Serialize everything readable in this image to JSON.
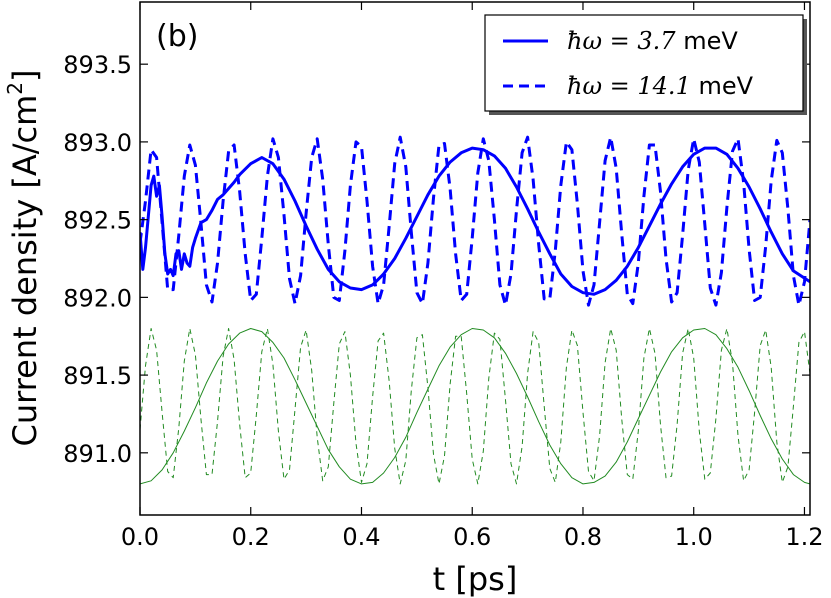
{
  "chart_data": {
    "type": "line",
    "panel_label": "(b)",
    "xlabel": "t [ps]",
    "ylabel": "Current density [A/cm",
    "ylabel_sup": "2",
    "ylabel_close": "]",
    "xlim": [
      0.0,
      1.21
    ],
    "ylim": [
      890.6,
      893.9
    ],
    "x_ticks": [
      0.0,
      0.2,
      0.4,
      0.6,
      0.8,
      1.0,
      1.2
    ],
    "x_tick_labels": [
      "0.0",
      "0.2",
      "0.4",
      "0.6",
      "0.8",
      "1.0",
      "1.2"
    ],
    "y_ticks": [
      891.0,
      891.5,
      892.0,
      892.5,
      893.0,
      893.5
    ],
    "y_tick_labels": [
      "891.0",
      "891.5",
      "892.0",
      "892.5",
      "893.0",
      "893.5"
    ],
    "grid": false,
    "legend_position": "top-right",
    "series": [
      {
        "name": "hw_3_7",
        "legend_math": "ħω = 3.7",
        "legend_unit": " meV",
        "color": "#0000ff",
        "style": "solid",
        "x": [
          0.0,
          0.005,
          0.01,
          0.015,
          0.02,
          0.025,
          0.03,
          0.035,
          0.04,
          0.045,
          0.05,
          0.055,
          0.06,
          0.065,
          0.07,
          0.075,
          0.08,
          0.085,
          0.09,
          0.095,
          0.1,
          0.11,
          0.12,
          0.13,
          0.14,
          0.15,
          0.16,
          0.17,
          0.18,
          0.2,
          0.22,
          0.24,
          0.26,
          0.28,
          0.3,
          0.32,
          0.34,
          0.36,
          0.38,
          0.4,
          0.42,
          0.44,
          0.46,
          0.48,
          0.5,
          0.52,
          0.54,
          0.56,
          0.58,
          0.6,
          0.62,
          0.64,
          0.66,
          0.68,
          0.7,
          0.72,
          0.74,
          0.76,
          0.78,
          0.8,
          0.82,
          0.84,
          0.86,
          0.88,
          0.9,
          0.92,
          0.94,
          0.96,
          0.98,
          1.0,
          1.02,
          1.04,
          1.06,
          1.08,
          1.1,
          1.12,
          1.14,
          1.16,
          1.18,
          1.21
        ],
        "y": [
          892.42,
          892.18,
          892.32,
          892.52,
          892.72,
          892.78,
          892.65,
          892.72,
          892.52,
          892.28,
          892.15,
          892.18,
          892.14,
          892.28,
          892.3,
          892.18,
          892.28,
          892.22,
          892.2,
          892.32,
          892.38,
          892.48,
          892.5,
          892.56,
          892.63,
          892.66,
          892.7,
          892.74,
          892.79,
          892.86,
          892.9,
          892.86,
          892.76,
          892.62,
          892.46,
          892.31,
          892.18,
          892.1,
          892.06,
          892.05,
          892.08,
          892.15,
          892.25,
          892.38,
          892.52,
          892.66,
          892.78,
          892.87,
          892.93,
          892.96,
          892.95,
          892.91,
          892.83,
          892.71,
          892.57,
          892.42,
          892.28,
          892.15,
          892.07,
          892.03,
          892.02,
          892.05,
          892.11,
          892.2,
          892.32,
          892.46,
          892.6,
          892.73,
          892.84,
          892.92,
          892.96,
          892.96,
          892.92,
          892.83,
          892.71,
          892.57,
          892.42,
          892.28,
          892.17,
          892.1
        ]
      },
      {
        "name": "hw_14_1",
        "legend_math": "ħω = 14.1",
        "legend_unit": " meV",
        "color": "#0000ff",
        "style": "dashed",
        "x": [
          0.0,
          0.01,
          0.02,
          0.03,
          0.04,
          0.05,
          0.06,
          0.07,
          0.08,
          0.09,
          0.1,
          0.11,
          0.12,
          0.13,
          0.14,
          0.15,
          0.16,
          0.17,
          0.18,
          0.19,
          0.2,
          0.21,
          0.22,
          0.23,
          0.24,
          0.25,
          0.26,
          0.27,
          0.28,
          0.29,
          0.3,
          0.31,
          0.32,
          0.33,
          0.34,
          0.35,
          0.36,
          0.37,
          0.38,
          0.39,
          0.4,
          0.41,
          0.42,
          0.43,
          0.44,
          0.45,
          0.46,
          0.47,
          0.48,
          0.49,
          0.5,
          0.51,
          0.52,
          0.53,
          0.54,
          0.55,
          0.56,
          0.57,
          0.58,
          0.59,
          0.6,
          0.61,
          0.62,
          0.63,
          0.64,
          0.65,
          0.66,
          0.67,
          0.68,
          0.69,
          0.7,
          0.71,
          0.72,
          0.73,
          0.74,
          0.75,
          0.76,
          0.77,
          0.78,
          0.79,
          0.8,
          0.81,
          0.82,
          0.83,
          0.84,
          0.85,
          0.86,
          0.87,
          0.88,
          0.89,
          0.9,
          0.91,
          0.92,
          0.93,
          0.94,
          0.95,
          0.96,
          0.97,
          0.98,
          0.99,
          1.0,
          1.01,
          1.02,
          1.03,
          1.04,
          1.05,
          1.06,
          1.07,
          1.08,
          1.09,
          1.1,
          1.11,
          1.12,
          1.13,
          1.14,
          1.15,
          1.16,
          1.17,
          1.18,
          1.19,
          1.2,
          1.21
        ],
        "y": [
          892.35,
          892.62,
          892.95,
          892.9,
          892.48,
          892.05,
          892.05,
          892.4,
          892.78,
          892.98,
          892.85,
          892.48,
          892.08,
          891.97,
          892.22,
          892.62,
          892.94,
          892.98,
          892.68,
          892.28,
          891.98,
          892.02,
          892.38,
          892.78,
          893.02,
          892.9,
          892.53,
          892.12,
          891.96,
          892.14,
          892.54,
          892.9,
          893.02,
          892.76,
          892.34,
          892.0,
          891.98,
          892.3,
          892.72,
          893.0,
          892.97,
          892.62,
          892.2,
          891.96,
          892.08,
          892.46,
          892.86,
          893.03,
          892.84,
          892.42,
          892.03,
          891.96,
          892.22,
          892.64,
          892.98,
          892.99,
          892.7,
          892.28,
          891.98,
          892.02,
          892.38,
          892.8,
          893.02,
          892.88,
          892.5,
          892.08,
          891.95,
          892.15,
          892.56,
          892.93,
          893.03,
          892.76,
          892.34,
          891.99,
          891.99,
          892.3,
          892.72,
          893.0,
          892.95,
          892.6,
          892.17,
          891.95,
          892.08,
          892.48,
          892.88,
          893.03,
          892.83,
          892.41,
          892.02,
          891.96,
          892.22,
          892.65,
          892.98,
          892.98,
          892.68,
          892.25,
          891.97,
          892.03,
          892.4,
          892.82,
          893.02,
          892.87,
          892.47,
          892.06,
          891.95,
          892.16,
          892.58,
          892.94,
          893.02,
          892.74,
          892.31,
          891.98,
          892.0,
          892.33,
          892.75,
          893.01,
          892.93,
          892.57,
          892.14,
          891.95,
          892.1,
          892.5
        ]
      },
      {
        "name": "drive_3_7",
        "color": "#228b22",
        "style": "solid-thin",
        "x": [
          0.0,
          0.02,
          0.04,
          0.06,
          0.08,
          0.1,
          0.12,
          0.14,
          0.16,
          0.18,
          0.2,
          0.22,
          0.24,
          0.26,
          0.28,
          0.3,
          0.32,
          0.34,
          0.36,
          0.38,
          0.4,
          0.42,
          0.44,
          0.46,
          0.48,
          0.5,
          0.52,
          0.54,
          0.56,
          0.58,
          0.6,
          0.62,
          0.64,
          0.66,
          0.68,
          0.7,
          0.72,
          0.74,
          0.76,
          0.78,
          0.8,
          0.82,
          0.84,
          0.86,
          0.88,
          0.9,
          0.92,
          0.94,
          0.96,
          0.98,
          1.0,
          1.02,
          1.04,
          1.06,
          1.08,
          1.1,
          1.12,
          1.14,
          1.16,
          1.18,
          1.2,
          1.21
        ],
        "y": [
          890.8,
          890.82,
          890.89,
          891.0,
          891.14,
          891.29,
          891.45,
          891.59,
          891.7,
          891.77,
          891.8,
          891.78,
          891.71,
          891.61,
          891.47,
          891.32,
          891.17,
          891.02,
          890.91,
          890.83,
          890.8,
          890.81,
          890.87,
          890.97,
          891.1,
          891.26,
          891.41,
          891.56,
          891.68,
          891.76,
          891.8,
          891.79,
          891.74,
          891.64,
          891.51,
          891.36,
          891.2,
          891.05,
          890.93,
          890.84,
          890.8,
          890.81,
          890.85,
          890.94,
          891.07,
          891.22,
          891.37,
          891.52,
          891.65,
          891.74,
          891.79,
          891.8,
          891.76,
          891.67,
          891.55,
          891.4,
          891.24,
          891.09,
          890.96,
          890.86,
          890.81,
          890.8
        ]
      },
      {
        "name": "drive_14_1",
        "color": "#228b22",
        "style": "dashed-thin",
        "x": [
          0.0,
          0.01,
          0.02,
          0.03,
          0.04,
          0.05,
          0.06,
          0.07,
          0.08,
          0.09,
          0.1,
          0.11,
          0.12,
          0.13,
          0.14,
          0.15,
          0.16,
          0.17,
          0.18,
          0.19,
          0.2,
          0.21,
          0.22,
          0.23,
          0.24,
          0.25,
          0.26,
          0.27,
          0.28,
          0.29,
          0.3,
          0.31,
          0.32,
          0.33,
          0.34,
          0.35,
          0.36,
          0.37,
          0.38,
          0.39,
          0.4,
          0.41,
          0.42,
          0.43,
          0.44,
          0.45,
          0.46,
          0.47,
          0.48,
          0.49,
          0.5,
          0.51,
          0.52,
          0.53,
          0.54,
          0.55,
          0.56,
          0.57,
          0.58,
          0.59,
          0.6,
          0.61,
          0.62,
          0.63,
          0.64,
          0.65,
          0.66,
          0.67,
          0.68,
          0.69,
          0.7,
          0.71,
          0.72,
          0.73,
          0.74,
          0.75,
          0.76,
          0.77,
          0.78,
          0.79,
          0.8,
          0.81,
          0.82,
          0.83,
          0.84,
          0.85,
          0.86,
          0.87,
          0.88,
          0.89,
          0.9,
          0.91,
          0.92,
          0.93,
          0.94,
          0.95,
          0.96,
          0.97,
          0.98,
          0.99,
          1.0,
          1.01,
          1.02,
          1.03,
          1.04,
          1.05,
          1.06,
          1.07,
          1.08,
          1.09,
          1.1,
          1.11,
          1.12,
          1.13,
          1.14,
          1.15,
          1.16,
          1.17,
          1.18,
          1.19,
          1.2,
          1.21
        ],
        "y": [
          891.15,
          891.56,
          891.8,
          891.66,
          891.26,
          890.88,
          890.84,
          891.16,
          891.59,
          891.8,
          891.63,
          891.22,
          890.86,
          890.86,
          891.2,
          891.62,
          891.8,
          891.6,
          891.18,
          890.84,
          890.87,
          891.24,
          891.65,
          891.8,
          891.57,
          891.14,
          890.83,
          890.89,
          891.28,
          891.68,
          891.79,
          891.53,
          891.1,
          890.82,
          890.91,
          891.32,
          891.7,
          891.78,
          891.5,
          891.06,
          890.81,
          890.93,
          891.36,
          891.72,
          891.77,
          891.46,
          891.03,
          890.8,
          890.95,
          891.4,
          891.74,
          891.76,
          891.42,
          890.99,
          890.8,
          890.98,
          891.44,
          891.75,
          891.75,
          891.38,
          890.96,
          890.8,
          891.01,
          891.48,
          891.77,
          891.73,
          891.34,
          890.93,
          890.8,
          891.04,
          891.51,
          891.78,
          891.71,
          891.3,
          890.9,
          890.81,
          891.07,
          891.55,
          891.79,
          891.69,
          891.26,
          890.88,
          890.82,
          891.11,
          891.58,
          891.8,
          891.66,
          891.22,
          890.86,
          890.83,
          891.14,
          891.61,
          891.8,
          891.64,
          891.18,
          890.84,
          890.85,
          891.18,
          891.64,
          891.8,
          891.61,
          891.14,
          890.83,
          890.87,
          891.22,
          891.66,
          891.8,
          891.58,
          891.11,
          890.82,
          890.89,
          891.26,
          891.69,
          891.79,
          891.55,
          891.07,
          890.81,
          890.91,
          891.3,
          891.71,
          891.78,
          891.51
        ]
      }
    ]
  }
}
